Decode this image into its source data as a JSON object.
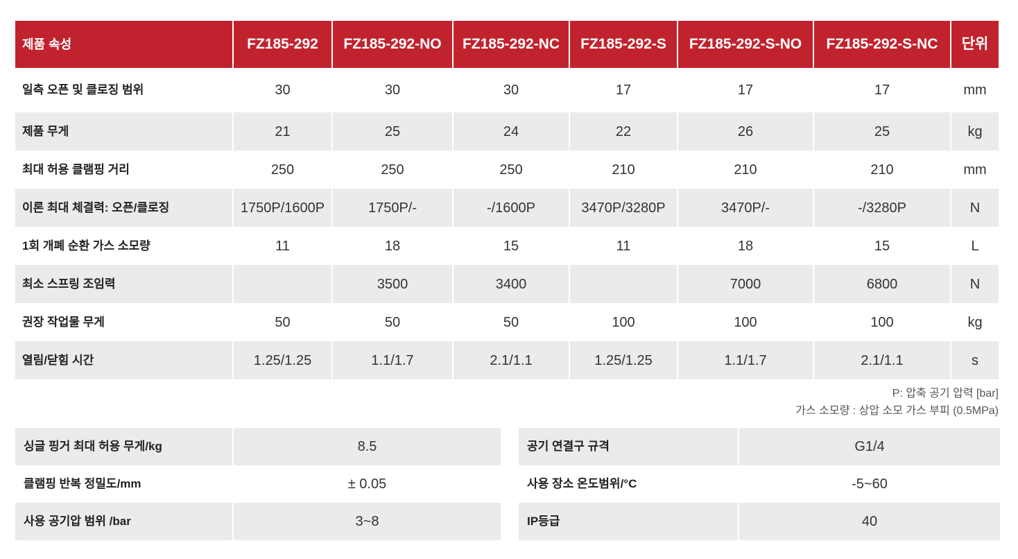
{
  "header": [
    "제품 속성",
    "FZ185-292",
    "FZ185-292-NO",
    "FZ185-292-NC",
    "FZ185-292-S",
    "FZ185-292-S-NO",
    "FZ185-292-S-NC",
    "단위"
  ],
  "rows": [
    [
      "일측 오픈 및 클로징 범위",
      "30",
      "30",
      "30",
      "17",
      "17",
      "17",
      "mm"
    ],
    [
      "제품 무게",
      "21",
      "25",
      "24",
      "22",
      "26",
      "25",
      "kg"
    ],
    [
      "최대 허용 클램핑 거리",
      "250",
      "250",
      "250",
      "210",
      "210",
      "210",
      "mm"
    ],
    [
      "이론 최대 체결력: 오픈/클로징",
      "1750P/1600P",
      "1750P/-",
      "-/1600P",
      "3470P/3280P",
      "3470P/-",
      "-/3280P",
      "N"
    ],
    [
      "1회 개폐 순환 가스 소모량",
      "11",
      "18",
      "15",
      "11",
      "18",
      "15",
      "L"
    ],
    [
      "최소 스프링 조임력",
      "",
      "3500",
      "3400",
      "",
      "7000",
      "6800",
      "N"
    ],
    [
      "권장 작업물 무게",
      "50",
      "50",
      "50",
      "100",
      "100",
      "100",
      "kg"
    ],
    [
      "열림/닫힘 시간",
      "1.25/1.25",
      "1.1/1.7",
      "2.1/1.1",
      "1.25/1.25",
      "1.1/1.7",
      "2.1/1.1",
      "s"
    ]
  ],
  "notes": [
    "P: 압축 공기 압력 [bar]",
    "가스 소모량 : 상압 소모 가스 부피 (0.5MPa)"
  ],
  "left_table": [
    [
      "싱글 핑거 최대 허용 무게/kg",
      "8.5"
    ],
    [
      "클램핑 반복 정밀도/mm",
      "± 0.05"
    ],
    [
      "사용 공기압 범위 /bar",
      "3~8"
    ]
  ],
  "right_table": [
    [
      "공기 연결구 규격",
      "G1/4"
    ],
    [
      "사용 장소 온도범위/°C",
      "-5~60"
    ],
    [
      "IP등급",
      "40"
    ]
  ],
  "colors": {
    "header_bg": "#c1232e",
    "stripe": "#ebebed"
  }
}
